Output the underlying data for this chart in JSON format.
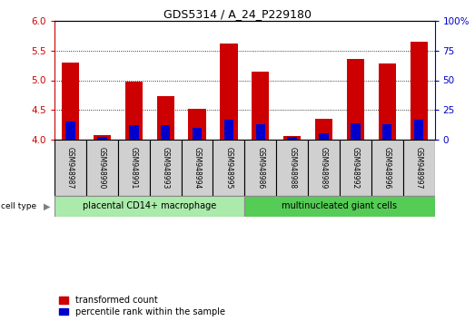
{
  "title": "GDS5314 / A_24_P229180",
  "samples": [
    "GSM948987",
    "GSM948990",
    "GSM948991",
    "GSM948993",
    "GSM948994",
    "GSM948995",
    "GSM948986",
    "GSM948988",
    "GSM948989",
    "GSM948992",
    "GSM948996",
    "GSM948997"
  ],
  "transformed_count": [
    5.3,
    4.07,
    4.97,
    4.74,
    4.52,
    5.62,
    5.15,
    4.06,
    4.35,
    5.36,
    5.29,
    5.65
  ],
  "percentile_rank": [
    15,
    2,
    12,
    12,
    10,
    17,
    13,
    2,
    5,
    14,
    13,
    17
  ],
  "group1_label": "placental CD14+ macrophage",
  "group1_count": 6,
  "group2_label": "multinucleated giant cells",
  "group2_count": 6,
  "cell_type_label": "cell type",
  "ylim_left": [
    4.0,
    6.0
  ],
  "ylim_right": [
    0,
    100
  ],
  "yticks_left": [
    4.0,
    4.5,
    5.0,
    5.5,
    6.0
  ],
  "yticks_right": [
    0,
    25,
    50,
    75,
    100
  ],
  "red_color": "#cc0000",
  "blue_color": "#0000cc",
  "group1_bg": "#aaeaaa",
  "group2_bg": "#55cc55",
  "tick_bg": "#d0d0d0",
  "legend_red": "transformed count",
  "legend_blue": "percentile rank within the sample",
  "bar_width": 0.55,
  "blue_bar_width": 0.3
}
